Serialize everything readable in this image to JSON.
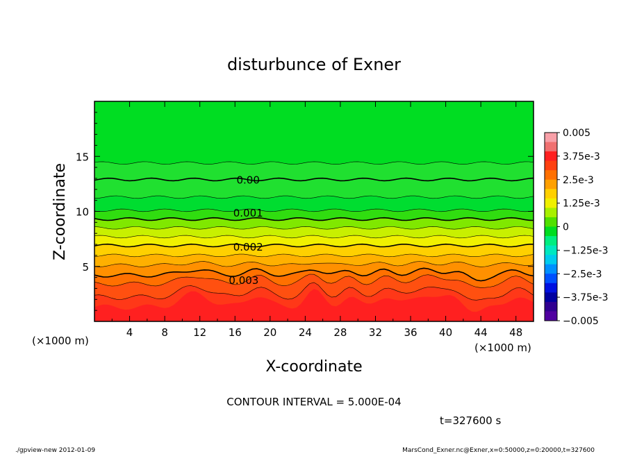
{
  "chart_data": {
    "type": "heatmap",
    "title": "disturbunce of Exner",
    "xlabel": "X-coordinate",
    "ylabel": "Z-coordinate",
    "x_unit_left": "(×1000 m)",
    "x_unit_right": "(×1000 m)",
    "xlim": [
      0,
      50
    ],
    "ylim": [
      0,
      20
    ],
    "x_ticks": [
      4,
      8,
      12,
      16,
      20,
      24,
      28,
      32,
      36,
      40,
      44,
      48
    ],
    "y_ticks": [
      5,
      10,
      15
    ],
    "contour_labels": [
      {
        "label": "0.00",
        "value": 0.0,
        "x": 17.5,
        "z": 12.9
      },
      {
        "label": "0.001",
        "value": 0.001,
        "x": 17.5,
        "z": 9.9
      },
      {
        "label": "0.002",
        "value": 0.002,
        "x": 17.5,
        "z": 6.8
      },
      {
        "label": "0.003",
        "value": 0.003,
        "x": 17,
        "z": 3.8
      }
    ],
    "colorbar": {
      "labels": [
        "0.005",
        "3.75e-3",
        "2.5e-3",
        "1.25e-3",
        "0",
        "−1.25e-3",
        "−2.5e-3",
        "−3.75e-3",
        "−0.005"
      ],
      "range": [
        -0.005,
        0.005
      ],
      "colors": [
        "#f8a0a8",
        "#f07070",
        "#ff2020",
        "#ff4010",
        "#ff7000",
        "#ffa000",
        "#ffd000",
        "#f0f000",
        "#a8f000",
        "#50e000",
        "#00dd20",
        "#00ee80",
        "#00e8c0",
        "#00ccee",
        "#0090ff",
        "#0050ff",
        "#0010e0",
        "#0000a0",
        "#300090",
        "#5000a0"
      ]
    },
    "field_colors": [
      "#ff2020",
      "#ff3818",
      "#ff5010",
      "#ff7000",
      "#ff9000",
      "#ffb000",
      "#ffd000",
      "#f0f000",
      "#c8f000",
      "#80e800",
      "#30dd10",
      "#00dd30",
      "#20e030"
    ],
    "contour_interval_text": "CONTOUR INTERVAL = 5.000E-04",
    "time_text": "t=327600 s"
  },
  "footer": {
    "left": "./gpview-new   2012-01-09",
    "right": "MarsCond_Exner.nc@Exner,x=0:50000,z=0:20000,t=327600"
  }
}
